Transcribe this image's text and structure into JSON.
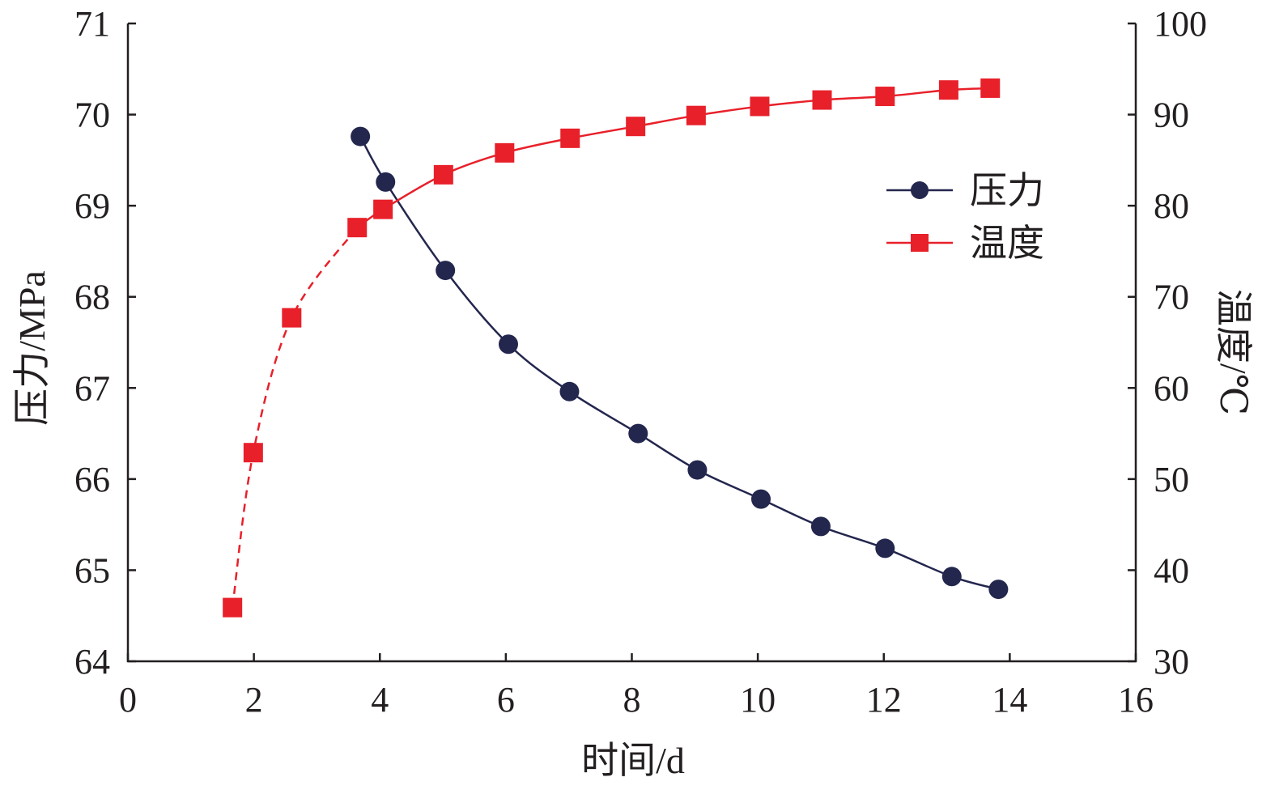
{
  "chart_data": {
    "type": "line",
    "title": "",
    "xlabel": "时间/d",
    "ylabel": "压力/MPa",
    "y2label": "温度/℃",
    "xlim": [
      0,
      16
    ],
    "ylim": [
      64,
      71
    ],
    "y2lim": [
      30,
      100
    ],
    "xticks": [
      "0",
      "2",
      "4",
      "6",
      "8",
      "10",
      "12",
      "14",
      "16"
    ],
    "yticks": [
      "64",
      "65",
      "66",
      "67",
      "68",
      "69",
      "70",
      "71"
    ],
    "y2ticks": [
      "30",
      "40",
      "50",
      "60",
      "70",
      "80",
      "90",
      "100"
    ],
    "grid": false,
    "legend_position": "upper-right-inside",
    "colors": {
      "pressure": "#23264d",
      "temperature": "#e8202a",
      "axis": "#231f20"
    },
    "series": [
      {
        "name": "压力",
        "axis": "left",
        "marker": "circle",
        "x": [
          3.69,
          4.09,
          5.04,
          6.04,
          7.01,
          8.1,
          9.04,
          10.05,
          11.0,
          12.02,
          13.08,
          13.82
        ],
        "y": [
          69.76,
          69.26,
          68.29,
          67.48,
          66.96,
          66.5,
          66.1,
          65.78,
          65.48,
          65.24,
          64.93,
          64.79
        ]
      },
      {
        "name": "温度",
        "axis": "right",
        "marker": "square",
        "dashed_until_index": 3,
        "x": [
          1.66,
          1.99,
          2.6,
          3.64,
          4.05,
          5.01,
          5.98,
          7.02,
          8.06,
          9.02,
          10.03,
          11.02,
          12.02,
          13.03,
          13.69
        ],
        "y": [
          35.9,
          52.9,
          67.7,
          77.6,
          79.6,
          83.4,
          85.8,
          87.4,
          88.7,
          89.9,
          90.9,
          91.6,
          92.0,
          92.7,
          92.9
        ]
      }
    ]
  }
}
